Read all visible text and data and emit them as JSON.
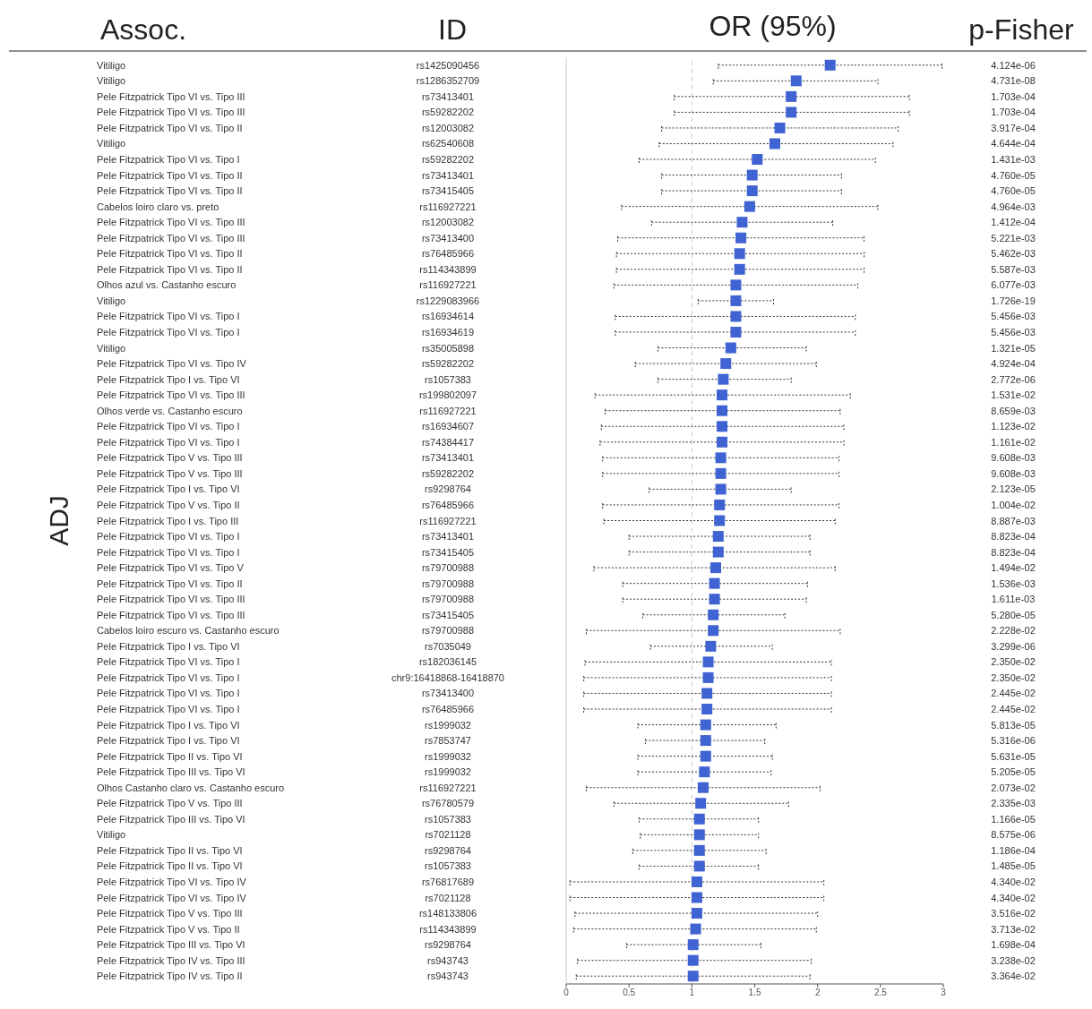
{
  "chart_data": {
    "type": "scatter",
    "orientation": "horizontal",
    "xlabel": "OR (95%)",
    "annotations": [
      "Assoc.",
      "ID",
      "p-Fisher",
      "ADJ",
      "4.124e-06",
      "4.731e-08",
      "1.703e-04",
      "1.703e-04",
      "3.917e-04",
      "4.644e-04",
      "1.431e-03",
      "4.760e-05",
      "4.760e-05",
      "4.964e-03",
      "1.412e-04",
      "5.221e-03",
      "5.462e-03",
      "5.587e-03",
      "6.077e-03",
      "1.726e-19",
      "5.456e-03",
      "5.456e-03",
      "1.321e-05",
      "4.924e-04",
      "2.772e-06",
      "1.531e-02",
      "8.659e-03",
      "1.123e-02",
      "1.161e-02",
      "9.608e-03",
      "9.608e-03",
      "2.123e-05",
      "1.004e-02",
      "8.887e-03",
      "8.823e-04",
      "8.823e-04",
      "1.494e-02",
      "1.536e-03",
      "1.611e-03",
      "5.280e-05",
      "2.228e-02",
      "3.299e-06",
      "2.350e-02",
      "2.350e-02",
      "2.445e-02",
      "2.445e-02",
      "5.813e-05",
      "5.316e-06",
      "5.631e-05",
      "5.205e-05",
      "2.073e-02",
      "2.335e-03",
      "1.166e-05",
      "8.575e-06",
      "1.186e-04",
      "1.485e-05",
      "4.340e-02",
      "4.340e-02",
      "3.516e-02",
      "3.713e-02",
      "1.698e-04",
      "3.238e-02",
      "3.364e-02"
    ],
    "y_categories": [
      "Vitiligo",
      "Vitiligo",
      "Pele Fitzpatrick Tipo VI vs. Tipo III",
      "Pele Fitzpatrick Tipo VI vs. Tipo III",
      "Pele Fitzpatrick Tipo VI vs. Tipo II",
      "Vitiligo",
      "Pele Fitzpatrick Tipo VI vs. Tipo I",
      "Pele Fitzpatrick Tipo VI vs. Tipo II",
      "Pele Fitzpatrick Tipo VI vs. Tipo II",
      "Cabelos loiro claro vs. preto",
      "Pele Fitzpatrick Tipo VI vs. Tipo III",
      "Pele Fitzpatrick Tipo VI vs. Tipo III",
      "Pele Fitzpatrick Tipo VI vs. Tipo II",
      "Pele Fitzpatrick Tipo VI vs. Tipo II",
      "Olhos azul vs. Castanho escuro",
      "Vitiligo",
      "Pele Fitzpatrick Tipo VI vs. Tipo I",
      "Pele Fitzpatrick Tipo VI vs. Tipo I",
      "Vitiligo",
      "Pele Fitzpatrick Tipo VI vs. Tipo IV",
      "Pele Fitzpatrick Tipo I vs. Tipo VI",
      "Pele Fitzpatrick Tipo VI vs. Tipo III",
      "Olhos verde vs. Castanho escuro",
      "Pele Fitzpatrick Tipo VI vs. Tipo I",
      "Pele Fitzpatrick Tipo VI vs. Tipo I",
      "Pele Fitzpatrick Tipo V vs. Tipo III",
      "Pele Fitzpatrick Tipo V vs. Tipo III",
      "Pele Fitzpatrick Tipo I vs. Tipo VI",
      "Pele Fitzpatrick Tipo V vs. Tipo II",
      "Pele Fitzpatrick Tipo I vs. Tipo III",
      "Pele Fitzpatrick Tipo VI vs. Tipo I",
      "Pele Fitzpatrick Tipo VI vs. Tipo I",
      "Pele Fitzpatrick Tipo VI vs. Tipo V",
      "Pele Fitzpatrick Tipo VI vs. Tipo II",
      "Pele Fitzpatrick Tipo VI vs. Tipo III",
      "Pele Fitzpatrick Tipo VI vs. Tipo III",
      "Cabelos loiro escuro vs. Castanho escuro",
      "Pele Fitzpatrick Tipo I vs. Tipo VI",
      "Pele Fitzpatrick Tipo VI vs. Tipo I",
      "Pele Fitzpatrick Tipo VI vs. Tipo I",
      "Pele Fitzpatrick Tipo VI vs. Tipo I",
      "Pele Fitzpatrick Tipo VI vs. Tipo I",
      "Pele Fitzpatrick Tipo I vs. Tipo VI",
      "Pele Fitzpatrick Tipo I vs. Tipo VI",
      "Pele Fitzpatrick Tipo II vs. Tipo VI",
      "Pele Fitzpatrick Tipo III vs. Tipo VI",
      "Olhos Castanho claro vs. Castanho escuro",
      "Pele Fitzpatrick Tipo V vs. Tipo III",
      "Pele Fitzpatrick Tipo III vs. Tipo VI",
      "Vitiligo",
      "Pele Fitzpatrick Tipo II vs. Tipo VI",
      "Pele Fitzpatrick Tipo II vs. Tipo VI",
      "Pele Fitzpatrick Tipo VI vs. Tipo IV",
      "Pele Fitzpatrick Tipo VI vs. Tipo IV",
      "Pele Fitzpatrick Tipo V vs. Tipo III",
      "Pele Fitzpatrick Tipo V vs. Tipo II",
      "Pele Fitzpatrick Tipo III vs. Tipo VI",
      "Pele Fitzpatrick Tipo IV vs. Tipo III",
      "Pele Fitzpatrick Tipo IV vs. Tipo II"
    ],
    "y2_categories": [
      "rs1425090456",
      "rs1286352709",
      "rs73413401",
      "rs59282202",
      "rs12003082",
      "rs62540608",
      "rs59282202",
      "rs73413401",
      "rs73415405",
      "rs116927221",
      "rs12003082",
      "rs73413400",
      "rs76485966",
      "rs114343899",
      "rs116927221",
      "rs1229083966",
      "rs16934614",
      "rs16934619",
      "rs35005898",
      "rs59282202",
      "rs1057383",
      "rs199802097",
      "rs116927221",
      "rs16934607",
      "rs74384417",
      "rs73413401",
      "rs59282202",
      "rs9298764",
      "rs76485966",
      "rs116927221",
      "rs73413401",
      "rs73415405",
      "rs79700988",
      "rs79700988",
      "rs79700988",
      "rs73415405",
      "rs79700988",
      "rs7035049",
      "rs182036145",
      "chr9:16418868-16418870",
      "rs73413400",
      "rs76485966",
      "rs1999032",
      "rs7853747",
      "rs1999032",
      "rs1999032",
      "rs116927221",
      "rs76780579",
      "rs1057383",
      "rs7021128",
      "rs9298764",
      "rs1057383",
      "rs76817689",
      "rs7021128",
      "rs148133806",
      "rs114343899",
      "rs9298764",
      "rs943743",
      "rs943743"
    ],
    "series": [
      {
        "color": "#3f63d2",
        "values": [
          2.1,
          1.83,
          1.79,
          1.79,
          1.7,
          1.66,
          1.52,
          1.48,
          1.48,
          1.46,
          1.4,
          1.39,
          1.38,
          1.38,
          1.35,
          1.35,
          1.35,
          1.35,
          1.31,
          1.27,
          1.25,
          1.24,
          1.24,
          1.24,
          1.24,
          1.23,
          1.23,
          1.23,
          1.22,
          1.22,
          1.21,
          1.21,
          1.19,
          1.18,
          1.18,
          1.17,
          1.17,
          1.15,
          1.13,
          1.13,
          1.12,
          1.12,
          1.11,
          1.11,
          1.11,
          1.1,
          1.09,
          1.07,
          1.06,
          1.06,
          1.06,
          1.06,
          1.04,
          1.04,
          1.04,
          1.03,
          1.01,
          1.01,
          1.01
        ],
        "errors": [
          [
            1.21,
            2.99
          ],
          [
            1.17,
            2.48
          ],
          [
            0.86,
            2.73
          ],
          [
            0.86,
            2.73
          ],
          [
            0.76,
            2.64
          ],
          [
            0.74,
            2.6
          ],
          [
            0.58,
            2.46
          ],
          [
            0.76,
            2.19
          ],
          [
            0.76,
            2.19
          ],
          [
            0.44,
            2.48
          ],
          [
            0.68,
            2.12
          ],
          [
            0.41,
            2.37
          ],
          [
            0.4,
            2.37
          ],
          [
            0.4,
            2.37
          ],
          [
            0.38,
            2.32
          ],
          [
            1.05,
            1.65
          ],
          [
            0.39,
            2.3
          ],
          [
            0.39,
            2.3
          ],
          [
            0.73,
            1.91
          ],
          [
            0.55,
            1.99
          ],
          [
            0.73,
            1.79
          ],
          [
            0.23,
            2.26
          ],
          [
            0.31,
            2.18
          ],
          [
            0.28,
            2.21
          ],
          [
            0.27,
            2.21
          ],
          [
            0.29,
            2.17
          ],
          [
            0.29,
            2.17
          ],
          [
            0.66,
            1.79
          ],
          [
            0.29,
            2.17
          ],
          [
            0.3,
            2.14
          ],
          [
            0.5,
            1.94
          ],
          [
            0.5,
            1.94
          ],
          [
            0.22,
            2.14
          ],
          [
            0.45,
            1.92
          ],
          [
            0.45,
            1.91
          ],
          [
            0.61,
            1.74
          ],
          [
            0.16,
            2.18
          ],
          [
            0.67,
            1.64
          ],
          [
            0.15,
            2.11
          ],
          [
            0.14,
            2.11
          ],
          [
            0.14,
            2.11
          ],
          [
            0.14,
            2.11
          ],
          [
            0.57,
            1.67
          ],
          [
            0.63,
            1.58
          ],
          [
            0.57,
            1.64
          ],
          [
            0.57,
            1.63
          ],
          [
            0.16,
            2.02
          ],
          [
            0.38,
            1.77
          ],
          [
            0.58,
            1.53
          ],
          [
            0.59,
            1.53
          ],
          [
            0.53,
            1.59
          ],
          [
            0.58,
            1.53
          ],
          [
            0.03,
            2.05
          ],
          [
            0.03,
            2.05
          ],
          [
            0.07,
            2.0
          ],
          [
            0.06,
            1.99
          ],
          [
            0.48,
            1.55
          ],
          [
            0.09,
            1.95
          ],
          [
            0.08,
            1.94
          ]
        ]
      }
    ],
    "xlim": [
      0,
      3
    ],
    "xticks": [
      0,
      0.5,
      1,
      1.5,
      2,
      2.5,
      3
    ],
    "ref_lines": [
      {
        "axis": "x",
        "value": 1,
        "color": "#cccccc",
        "line_style": "dashed"
      }
    ],
    "marker": "square",
    "line_style": "dotted"
  }
}
